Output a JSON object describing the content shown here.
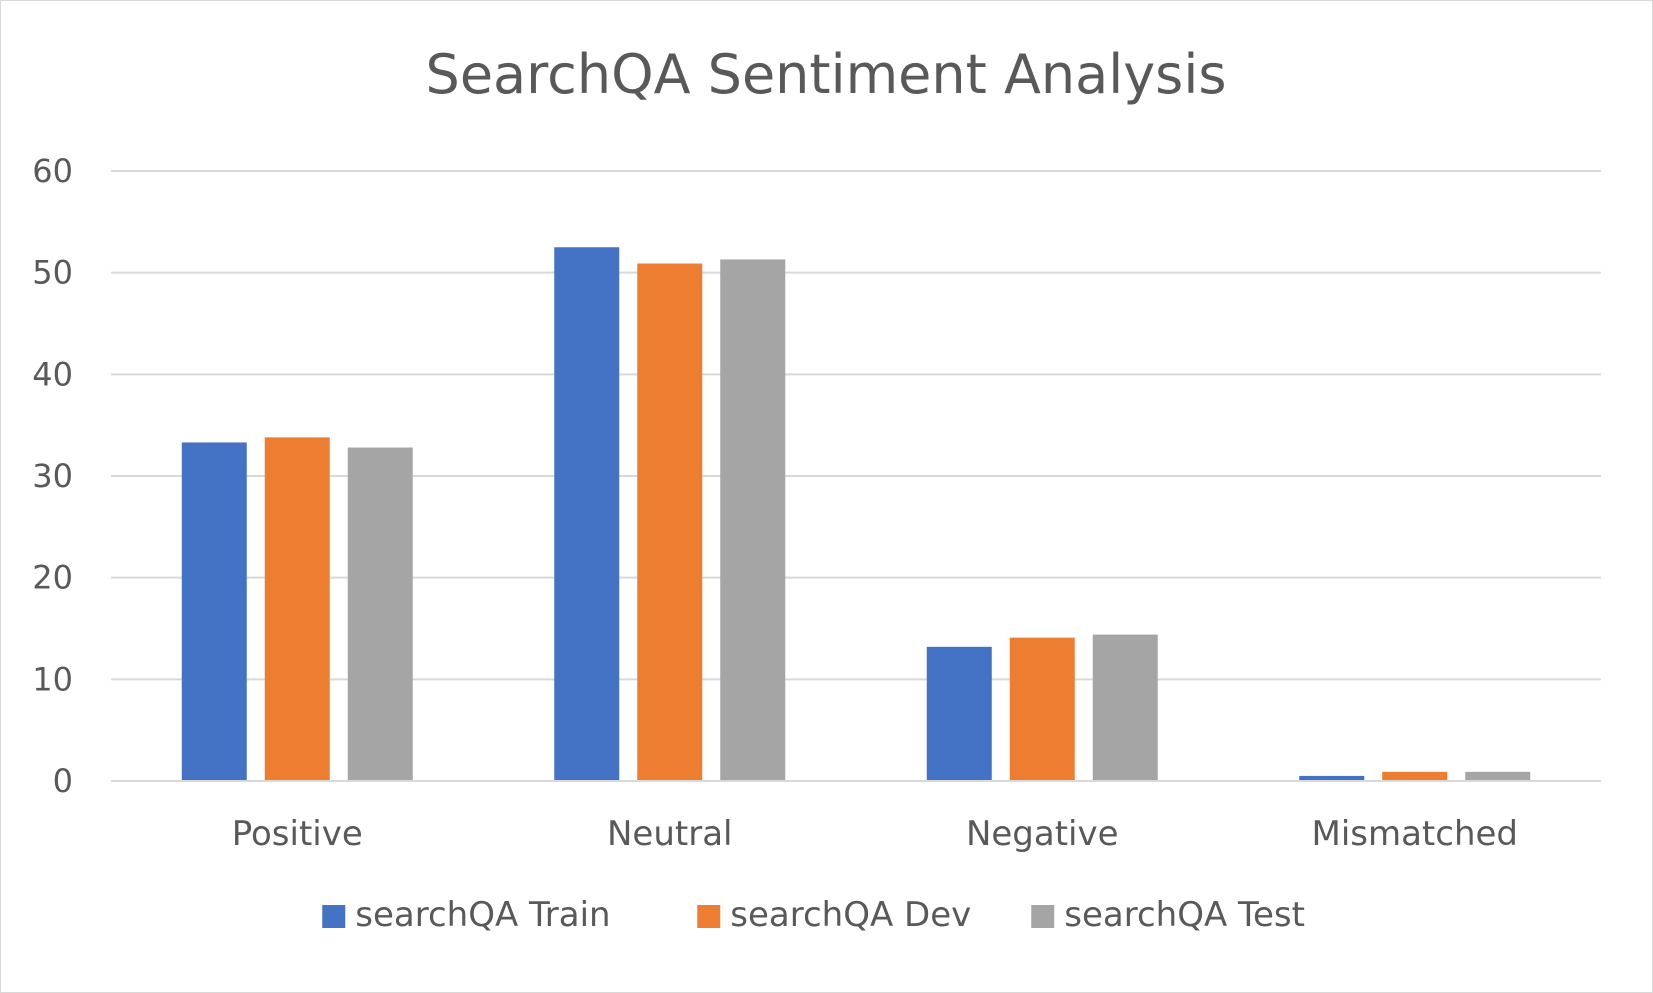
{
  "chart_data": {
    "type": "bar",
    "title": "SearchQA Sentiment Analysis",
    "xlabel": "",
    "ylabel": "",
    "categories": [
      "Positive",
      "Neutral",
      "Negative",
      "Mismatched"
    ],
    "series": [
      {
        "name": "searchQA Train",
        "color": "#4472C4",
        "values": [
          33.3,
          52.5,
          13.2,
          0.5
        ]
      },
      {
        "name": "searchQA Dev",
        "color": "#ED7D31",
        "values": [
          33.8,
          50.9,
          14.1,
          0.9
        ]
      },
      {
        "name": "searchQA Test",
        "color": "#A5A5A5",
        "values": [
          32.8,
          51.3,
          14.4,
          0.9
        ]
      }
    ],
    "ylim": [
      0,
      60
    ],
    "yticks": [
      0,
      10,
      20,
      30,
      40,
      50,
      60
    ],
    "grid": true,
    "legend_position": "bottom"
  }
}
